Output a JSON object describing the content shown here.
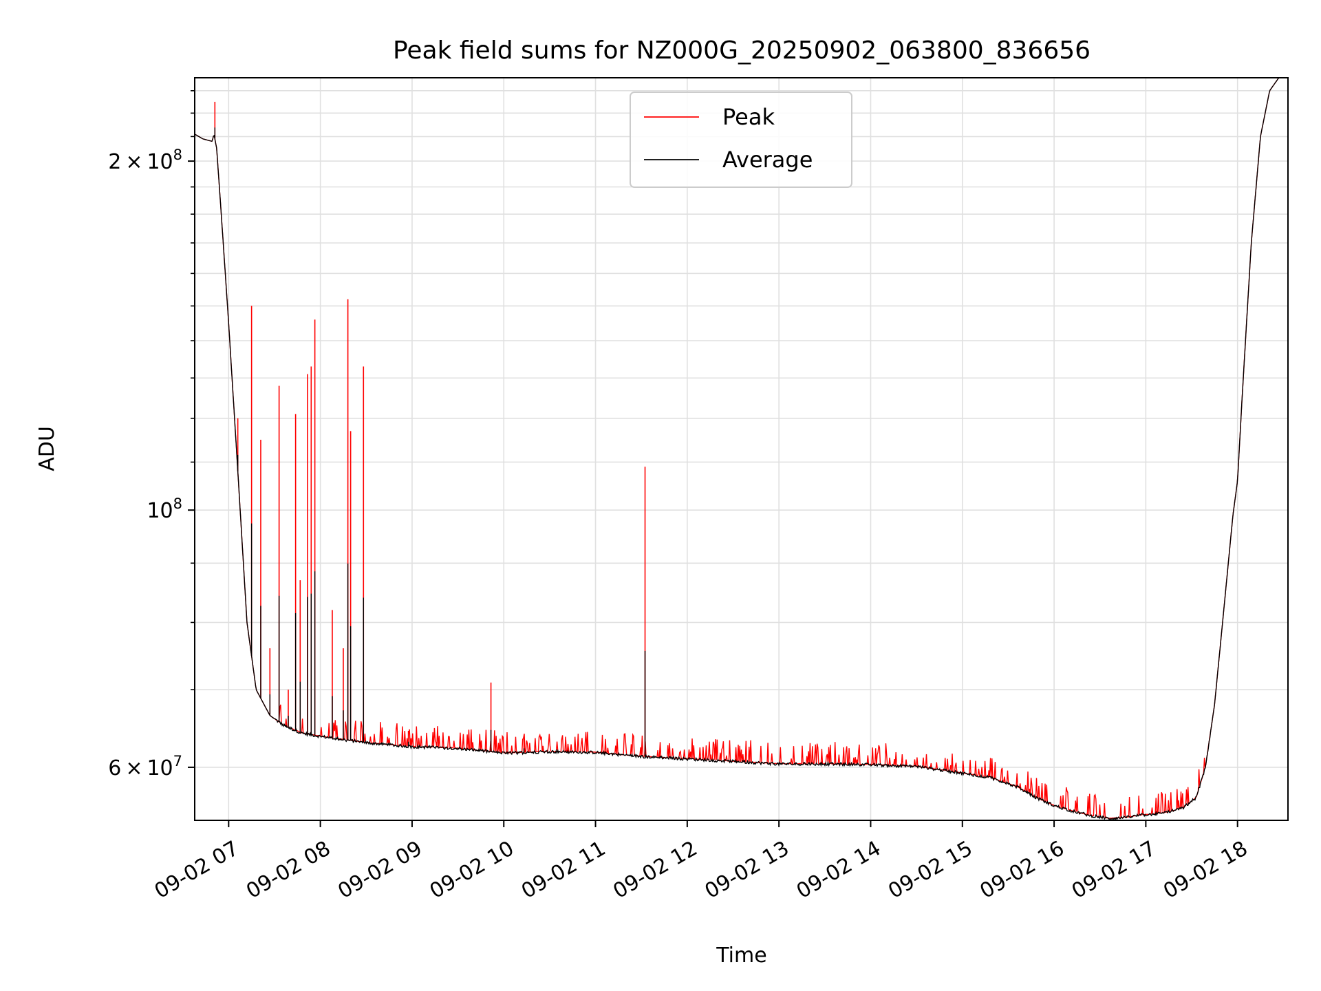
{
  "chart_data": {
    "type": "line",
    "title": "Peak field sums for NZ000G_20250902_063800_836656",
    "xlabel": "Time",
    "ylabel": "ADU",
    "y_scale": "log",
    "grid": true,
    "legend_position": "top-center",
    "xlim": [
      6.63,
      18.55
    ],
    "ylim": [
      54000000,
      236000000
    ],
    "x_ticks": [
      {
        "value": 7,
        "label": "09-02 07"
      },
      {
        "value": 8,
        "label": "09-02 08"
      },
      {
        "value": 9,
        "label": "09-02 09"
      },
      {
        "value": 10,
        "label": "09-02 10"
      },
      {
        "value": 11,
        "label": "09-02 11"
      },
      {
        "value": 12,
        "label": "09-02 12"
      },
      {
        "value": 13,
        "label": "09-02 13"
      },
      {
        "value": 14,
        "label": "09-02 14"
      },
      {
        "value": 15,
        "label": "09-02 15"
      },
      {
        "value": 16,
        "label": "09-02 16"
      },
      {
        "value": 17,
        "label": "09-02 17"
      },
      {
        "value": 18,
        "label": "09-02 18"
      }
    ],
    "y_ticks": [
      {
        "value": 60000000,
        "mantissa": "6",
        "exponent": "7",
        "label": "6 × 10^7"
      },
      {
        "value": 100000000,
        "mantissa": "",
        "exponent": "8",
        "label": "10^8"
      },
      {
        "value": 200000000,
        "mantissa": "2",
        "exponent": "8",
        "label": "2 × 10^8"
      }
    ],
    "series": [
      {
        "name": "Peak",
        "color": "#ff0000",
        "spikes": [
          {
            "x": 6.85,
            "y": 225000000
          },
          {
            "x": 7.1,
            "y": 120000000
          },
          {
            "x": 7.25,
            "y": 150000000
          },
          {
            "x": 7.35,
            "y": 115000000
          },
          {
            "x": 7.45,
            "y": 76000000
          },
          {
            "x": 7.55,
            "y": 128000000
          },
          {
            "x": 7.65,
            "y": 70000000
          },
          {
            "x": 7.73,
            "y": 121000000
          },
          {
            "x": 7.78,
            "y": 87000000
          },
          {
            "x": 7.86,
            "y": 131000000
          },
          {
            "x": 7.9,
            "y": 133000000
          },
          {
            "x": 7.94,
            "y": 146000000
          },
          {
            "x": 8.13,
            "y": 82000000
          },
          {
            "x": 8.25,
            "y": 76000000
          },
          {
            "x": 8.3,
            "y": 152000000
          },
          {
            "x": 8.33,
            "y": 117000000
          },
          {
            "x": 8.47,
            "y": 133000000
          },
          {
            "x": 8.96,
            "y": 64500000
          },
          {
            "x": 9.86,
            "y": 71000000
          },
          {
            "x": 10.22,
            "y": 63500000
          },
          {
            "x": 11.54,
            "y": 109000000
          }
        ]
      },
      {
        "name": "Average",
        "color": "#000000",
        "x": [
          6.63,
          6.72,
          6.82,
          6.84,
          6.87,
          6.93,
          7.0,
          7.1,
          7.2,
          7.3,
          7.45,
          7.6,
          7.8,
          8.0,
          8.5,
          9.0,
          9.5,
          10.0,
          10.5,
          11.0,
          11.5,
          12.0,
          12.5,
          13.0,
          13.5,
          14.0,
          14.5,
          15.0,
          15.3,
          15.6,
          15.8,
          16.0,
          16.2,
          16.4,
          16.6,
          16.8,
          16.9,
          17.0,
          17.2,
          17.4,
          17.55,
          17.65,
          17.75,
          17.85,
          17.95,
          18.0,
          18.05,
          18.15,
          18.25,
          18.35,
          18.45,
          18.55
        ],
        "y": [
          211000000,
          209000000,
          208000000,
          211000000,
          205000000,
          175000000,
          145000000,
          108000000,
          80000000,
          70000000,
          66500000,
          65200000,
          64200000,
          63800000,
          63000000,
          62500000,
          62300000,
          61700000,
          61900000,
          61800000,
          61300000,
          61000000,
          60700000,
          60400000,
          60400000,
          60300000,
          60100000,
          59300000,
          58800000,
          57700000,
          56500000,
          55600000,
          55000000,
          54500000,
          54200000,
          54300000,
          54500000,
          54600000,
          54800000,
          55300000,
          56500000,
          60000000,
          68000000,
          82000000,
          99000000,
          106000000,
          125000000,
          170000000,
          210000000,
          230000000,
          236000000,
          236000000
        ]
      }
    ]
  }
}
